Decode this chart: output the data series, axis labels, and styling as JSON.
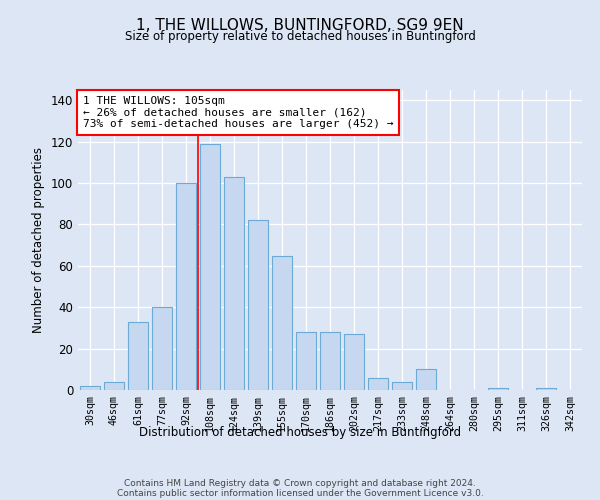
{
  "title1": "1, THE WILLOWS, BUNTINGFORD, SG9 9EN",
  "title2": "Size of property relative to detached houses in Buntingford",
  "xlabel": "Distribution of detached houses by size in Buntingford",
  "ylabel": "Number of detached properties",
  "categories": [
    "30sqm",
    "46sqm",
    "61sqm",
    "77sqm",
    "92sqm",
    "108sqm",
    "124sqm",
    "139sqm",
    "155sqm",
    "170sqm",
    "186sqm",
    "202sqm",
    "217sqm",
    "233sqm",
    "248sqm",
    "264sqm",
    "280sqm",
    "295sqm",
    "311sqm",
    "326sqm",
    "342sqm"
  ],
  "values": [
    2,
    4,
    33,
    40,
    100,
    119,
    103,
    82,
    65,
    28,
    28,
    27,
    6,
    4,
    10,
    0,
    0,
    1,
    0,
    1,
    0
  ],
  "bar_color": "#c5d8f0",
  "bar_edge_color": "#6aaad4",
  "background_color": "#dce6f5",
  "annotation_box_text": "1 THE WILLOWS: 105sqm\n← 26% of detached houses are smaller (162)\n73% of semi-detached houses are larger (452) →",
  "annotation_box_color": "white",
  "annotation_box_edge_color": "red",
  "vline_x_index": 5,
  "vline_color": "red",
  "ylim": [
    0,
    145
  ],
  "yticks": [
    0,
    20,
    40,
    60,
    80,
    100,
    120,
    140
  ],
  "footer_line1": "Contains HM Land Registry data © Crown copyright and database right 2024.",
  "footer_line2": "Contains public sector information licensed under the Government Licence v3.0."
}
